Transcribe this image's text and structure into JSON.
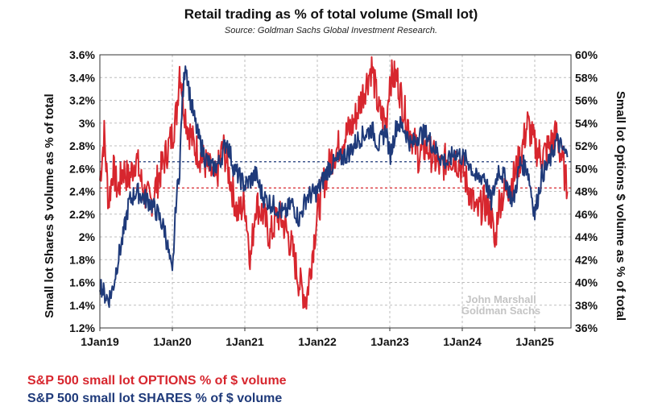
{
  "title": "Retail trading as % of total volume (Small lot)",
  "subtitle": "Source: Goldman Sachs Global Investment Research.",
  "watermark": [
    "John Marshall",
    "Goldman Sachs"
  ],
  "colors": {
    "options": "#d7262e",
    "shares": "#1f3a7a"
  },
  "legend": [
    {
      "label": "S&P 500 small lot OPTIONS % of $ volume",
      "color": "#d7262e"
    },
    {
      "label": "S&P 500 small lot SHARES % of $ volume",
      "color": "#1f3a7a"
    }
  ],
  "chart_data": {
    "type": "line",
    "title": "Retail trading as % of total volume (Small lot)",
    "ylabel": "Small lot Shares $ volume as % of total",
    "y2label": "Small lot Options $ volume as % of total",
    "ylim": [
      1.2,
      3.6
    ],
    "y2lim": [
      36,
      60
    ],
    "xlim": [
      2019.0,
      2025.5
    ],
    "yticks": [
      "1.2%",
      "1.4%",
      "1.6%",
      "1.8%",
      "2%",
      "2.2%",
      "2.4%",
      "2.6%",
      "2.8%",
      "3%",
      "3.2%",
      "3.4%",
      "3.6%"
    ],
    "y2ticks": [
      "36%",
      "38%",
      "40%",
      "42%",
      "44%",
      "46%",
      "48%",
      "50%",
      "52%",
      "54%",
      "56%",
      "58%",
      "60%"
    ],
    "xticks": [
      "1Jan19",
      "1Jan20",
      "1Jan21",
      "1Jan22",
      "1Jan23",
      "1Jan24",
      "1Jan25"
    ],
    "grid": true,
    "reference_lines": [
      {
        "series": "S&P 500 small lot SHARES % of $ volume",
        "value": 2.66
      },
      {
        "series": "S&P 500 small lot OPTIONS % of $ volume",
        "value": 48.3
      }
    ],
    "series": [
      {
        "name": "S&P 500 small lot OPTIONS % of $ volume",
        "axis": "right",
        "color": "#d7262e",
        "x": [
          2019.0,
          2019.06,
          2019.12,
          2019.18,
          2019.25,
          2019.32,
          2019.4,
          2019.5,
          2019.6,
          2019.7,
          2019.8,
          2019.9,
          2020.0,
          2020.06,
          2020.1,
          2020.15,
          2020.2,
          2020.3,
          2020.4,
          2020.5,
          2020.6,
          2020.7,
          2020.8,
          2020.9,
          2021.0,
          2021.08,
          2021.15,
          2021.25,
          2021.35,
          2021.45,
          2021.55,
          2021.65,
          2021.75,
          2021.85,
          2022.0,
          2022.1,
          2022.2,
          2022.3,
          2022.4,
          2022.5,
          2022.6,
          2022.7,
          2022.75,
          2022.85,
          2022.95,
          2023.0,
          2023.1,
          2023.2,
          2023.3,
          2023.4,
          2023.5,
          2023.6,
          2023.7,
          2023.8,
          2023.9,
          2024.0,
          2024.1,
          2024.2,
          2024.3,
          2024.4,
          2024.45,
          2024.5,
          2024.6,
          2024.7,
          2024.8,
          2024.9,
          2025.0,
          2025.1,
          2025.2,
          2025.3,
          2025.4,
          2025.45
        ],
        "values": [
          49,
          53,
          47,
          50,
          48,
          50,
          49,
          51,
          48,
          47,
          49,
          51,
          53,
          55,
          59,
          56,
          54,
          52,
          51,
          50,
          49,
          52,
          49,
          46,
          47,
          42,
          47,
          46,
          44,
          46,
          45,
          43,
          40,
          38.5,
          46,
          49,
          51,
          52,
          53,
          54,
          56,
          58,
          59,
          55,
          54,
          58,
          58,
          55,
          53,
          51,
          52,
          51,
          50,
          51,
          51,
          50,
          48,
          46,
          47,
          46,
          43,
          47,
          48,
          49,
          51,
          54,
          52,
          51,
          52,
          53,
          50,
          48
        ]
      },
      {
        "name": "S&P 500 small lot SHARES % of $ volume",
        "axis": "left",
        "color": "#1f3a7a",
        "x": [
          2019.0,
          2019.06,
          2019.12,
          2019.18,
          2019.25,
          2019.32,
          2019.4,
          2019.5,
          2019.6,
          2019.7,
          2019.8,
          2019.9,
          2020.0,
          2020.05,
          2020.1,
          2020.13,
          2020.18,
          2020.25,
          2020.35,
          2020.45,
          2020.55,
          2020.65,
          2020.75,
          2020.85,
          2021.0,
          2021.08,
          2021.15,
          2021.25,
          2021.35,
          2021.45,
          2021.55,
          2021.65,
          2021.75,
          2021.85,
          2022.0,
          2022.08,
          2022.15,
          2022.25,
          2022.35,
          2022.45,
          2022.55,
          2022.65,
          2022.75,
          2022.85,
          2022.95,
          2023.0,
          2023.1,
          2023.2,
          2023.3,
          2023.4,
          2023.5,
          2023.6,
          2023.7,
          2023.8,
          2023.9,
          2024.0,
          2024.1,
          2024.2,
          2024.3,
          2024.4,
          2024.5,
          2024.6,
          2024.7,
          2024.8,
          2024.9,
          2025.0,
          2025.1,
          2025.2,
          2025.3,
          2025.4,
          2025.45
        ],
        "values": [
          1.6,
          1.5,
          1.45,
          1.55,
          1.8,
          2.0,
          2.3,
          2.4,
          2.35,
          2.3,
          2.2,
          2.05,
          1.65,
          2.3,
          2.6,
          3.1,
          3.55,
          3.2,
          2.9,
          2.7,
          2.6,
          2.65,
          2.85,
          2.6,
          2.45,
          2.5,
          2.55,
          2.35,
          2.3,
          2.25,
          2.2,
          2.3,
          2.15,
          2.35,
          2.4,
          2.5,
          2.6,
          2.65,
          2.7,
          2.75,
          2.85,
          2.9,
          2.95,
          2.8,
          2.95,
          2.7,
          3.0,
          2.95,
          2.8,
          2.9,
          2.9,
          2.8,
          2.7,
          2.65,
          2.75,
          2.7,
          2.65,
          2.5,
          2.55,
          2.3,
          2.6,
          2.5,
          2.3,
          2.65,
          2.6,
          2.2,
          2.55,
          2.65,
          2.85,
          2.75,
          2.7
        ]
      }
    ]
  }
}
